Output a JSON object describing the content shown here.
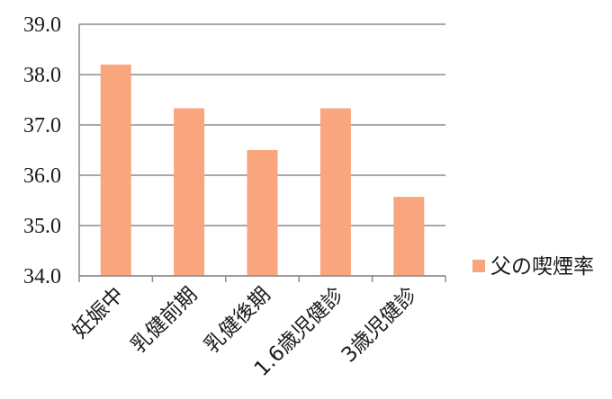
{
  "chart_data": {
    "type": "bar",
    "categories": [
      "妊娠中",
      "乳健前期",
      "乳健後期",
      "1.6歳児健診",
      "3歳児健診"
    ],
    "series": [
      {
        "name": "父の喫煙率",
        "values": [
          38.2,
          37.33,
          36.5,
          37.33,
          35.57
        ]
      }
    ],
    "ylim": [
      34.0,
      39.0
    ],
    "yticks": [
      "34.0",
      "35.0",
      "36.0",
      "37.0",
      "38.0",
      "39.0"
    ],
    "grid": true,
    "legend_position": "right",
    "colors": {
      "bar": "#F9A57E",
      "grid": "#8c8c8c",
      "axis": "#8c8c8c"
    }
  }
}
